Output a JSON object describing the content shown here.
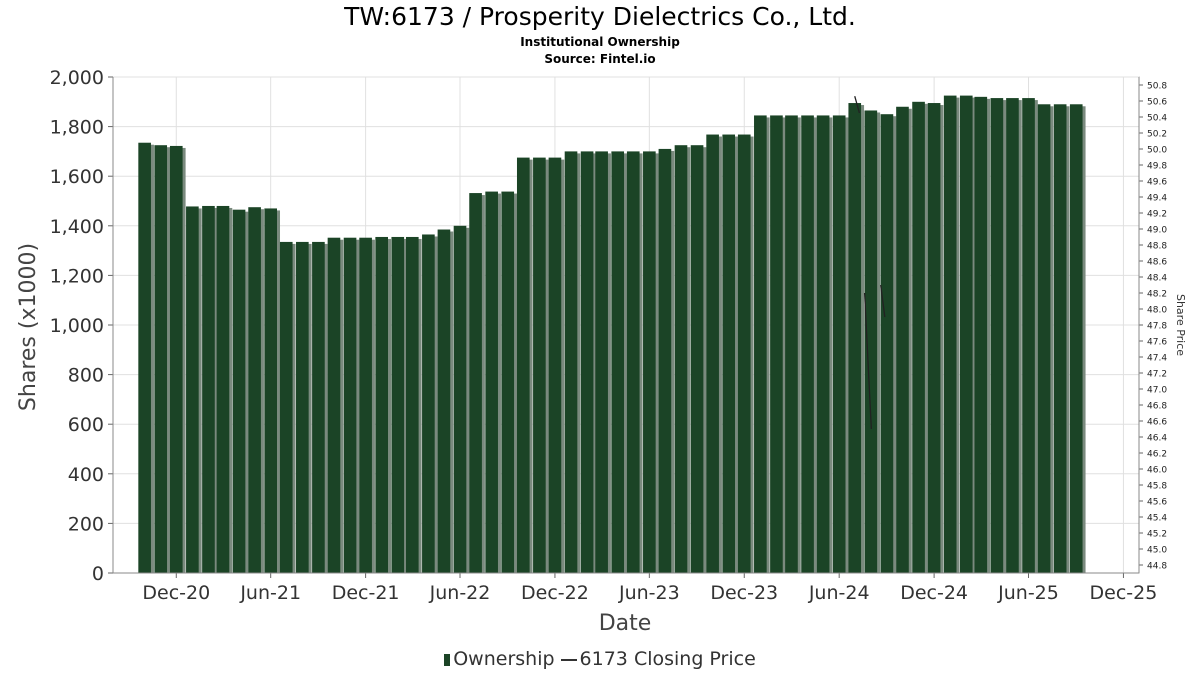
{
  "title": "TW:6173 / Prosperity Dielectrics Co., Ltd.",
  "subtitle": "Institutional Ownership",
  "source": "Source: Fintel.io",
  "legend": {
    "ownership": "Ownership",
    "price": "6173 Closing Price"
  },
  "colors": {
    "bar": "#1b4426",
    "bar_shadow": "#7a8a7e",
    "grid": "#e0e0e0",
    "line": "#222222"
  },
  "chart_data": {
    "type": "bar",
    "title": "TW:6173 / Prosperity Dielectrics Co., Ltd.",
    "xlabel": "Date",
    "ylabel": "Shares (x1000)",
    "y2label": "Share Price",
    "ylim": [
      0,
      2000
    ],
    "y2lim": [
      44.7,
      50.9
    ],
    "xlim": [
      "2020-08-01",
      "2025-12-31"
    ],
    "grid": true,
    "legend_position": "bottom",
    "yticks": [
      0,
      200,
      400,
      600,
      800,
      1000,
      1200,
      1400,
      1600,
      1800,
      2000
    ],
    "ytick_labels": [
      "0",
      "200",
      "400",
      "600",
      "800",
      "1,000",
      "1,200",
      "1,400",
      "1,600",
      "1,800",
      "2,000"
    ],
    "y2ticks": [
      "44.8",
      "45.0",
      "45.2",
      "45.4",
      "45.6",
      "45.8",
      "46.0",
      "46.2",
      "46.4",
      "46.6",
      "46.8",
      "47.0",
      "47.2",
      "47.4",
      "47.6",
      "47.8",
      "48.0",
      "48.2",
      "48.4",
      "48.6",
      "48.8",
      "49.0",
      "49.2",
      "49.4",
      "49.6",
      "49.8",
      "50.0",
      "50.2",
      "50.4",
      "50.6",
      "50.8"
    ],
    "xticks": [
      {
        "label": "Dec-20",
        "date": "2020-12-01"
      },
      {
        "label": "Jun-21",
        "date": "2021-06-01"
      },
      {
        "label": "Dec-21",
        "date": "2021-12-01"
      },
      {
        "label": "Jun-22",
        "date": "2022-06-01"
      },
      {
        "label": "Dec-22",
        "date": "2022-12-01"
      },
      {
        "label": "Jun-23",
        "date": "2023-06-01"
      },
      {
        "label": "Dec-23",
        "date": "2023-12-01"
      },
      {
        "label": "Jun-24",
        "date": "2024-06-01"
      },
      {
        "label": "Dec-24",
        "date": "2024-12-01"
      },
      {
        "label": "Jun-25",
        "date": "2025-06-01"
      },
      {
        "label": "Dec-25",
        "date": "2025-12-01"
      }
    ],
    "series": [
      {
        "name": "Ownership",
        "type": "bar",
        "x": [
          "2020-10-01",
          "2020-11-01",
          "2020-12-01",
          "2021-01-01",
          "2021-02-01",
          "2021-03-01",
          "2021-04-01",
          "2021-05-01",
          "2021-06-01",
          "2021-07-01",
          "2021-08-01",
          "2021-09-01",
          "2021-10-01",
          "2021-11-01",
          "2021-12-01",
          "2022-01-01",
          "2022-02-01",
          "2022-03-01",
          "2022-04-01",
          "2022-05-01",
          "2022-06-01",
          "2022-07-01",
          "2022-08-01",
          "2022-09-01",
          "2022-10-01",
          "2022-11-01",
          "2022-12-01",
          "2023-01-01",
          "2023-02-01",
          "2023-03-01",
          "2023-04-01",
          "2023-05-01",
          "2023-06-01",
          "2023-07-01",
          "2023-08-01",
          "2023-09-01",
          "2023-10-01",
          "2023-11-01",
          "2023-12-01",
          "2024-01-01",
          "2024-02-01",
          "2024-03-01",
          "2024-04-01",
          "2024-05-01",
          "2024-06-01",
          "2024-07-01",
          "2024-08-01",
          "2024-09-01",
          "2024-10-01",
          "2024-11-01",
          "2024-12-01",
          "2025-01-01",
          "2025-02-01",
          "2025-03-01",
          "2025-04-01",
          "2025-05-01",
          "2025-06-01",
          "2025-07-01",
          "2025-08-01",
          "2025-09-01"
        ],
        "values": [
          1735,
          1725,
          1722,
          1478,
          1480,
          1480,
          1465,
          1475,
          1470,
          1335,
          1335,
          1335,
          1352,
          1352,
          1352,
          1355,
          1355,
          1355,
          1365,
          1385,
          1400,
          1532,
          1538,
          1538,
          1675,
          1675,
          1675,
          1700,
          1700,
          1700,
          1700,
          1700,
          1700,
          1710,
          1725,
          1725,
          1768,
          1768,
          1768,
          1845,
          1845,
          1845,
          1845,
          1845,
          1845,
          1895,
          1865,
          1850,
          1880,
          1900,
          1895,
          1925,
          1925,
          1920,
          1915,
          1915,
          1915,
          1890,
          1890,
          1890
        ]
      },
      {
        "name": "6173 Closing Price",
        "type": "line",
        "segments": [
          {
            "x": [
              "2024-07-01",
              "2024-07-10"
            ],
            "y": [
              50.66,
              50.45
            ]
          },
          {
            "x": [
              "2024-07-20",
              "2024-08-02"
            ],
            "y": [
              48.2,
              46.5
            ]
          },
          {
            "x": [
              "2024-08-20",
              "2024-08-28"
            ],
            "y": [
              48.3,
              47.9
            ]
          }
        ]
      }
    ]
  }
}
